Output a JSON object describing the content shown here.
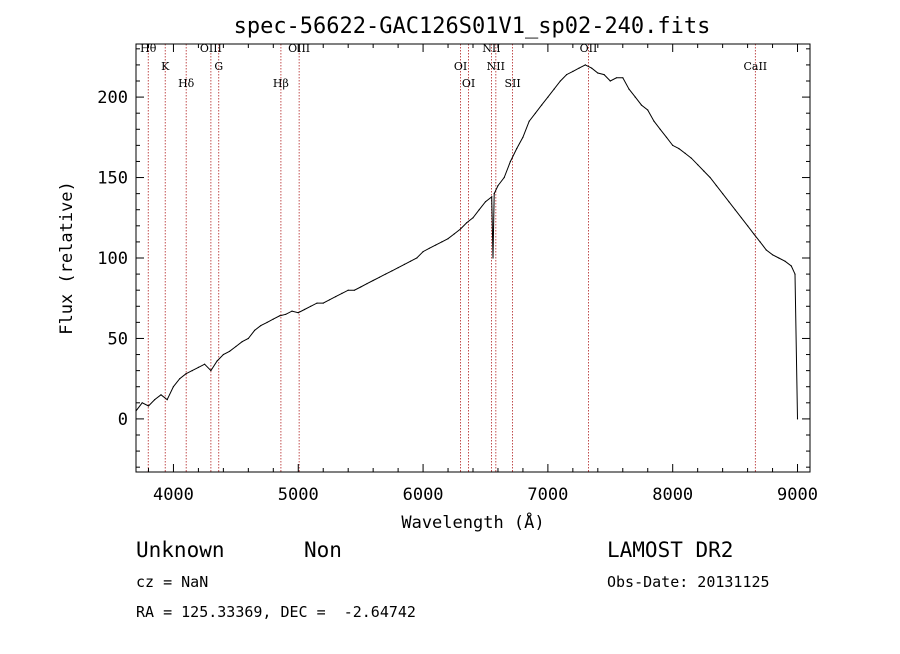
{
  "chart_data": {
    "type": "line",
    "title": "spec-56622-GAC126S01V1_sp02-240.fits",
    "xlabel": "Wavelength (Å)",
    "ylabel": "Flux (relative)",
    "xlim": [
      3700,
      9100
    ],
    "ylim": [
      -33,
      233
    ],
    "x_ticks": [
      4000,
      5000,
      6000,
      7000,
      8000,
      9000
    ],
    "y_ticks": [
      0,
      50,
      100,
      150,
      200
    ],
    "grid": false,
    "series": [
      {
        "color": "#000000",
        "x": [
          3700,
          3750,
          3800,
          3850,
          3900,
          3950,
          4000,
          4050,
          4100,
          4150,
          4200,
          4250,
          4300,
          4350,
          4400,
          4450,
          4500,
          4550,
          4600,
          4650,
          4700,
          4750,
          4800,
          4850,
          4900,
          4950,
          5000,
          5050,
          5100,
          5150,
          5200,
          5250,
          5300,
          5350,
          5400,
          5450,
          5500,
          5550,
          5600,
          5650,
          5700,
          5750,
          5800,
          5850,
          5900,
          5950,
          6000,
          6050,
          6100,
          6150,
          6200,
          6250,
          6300,
          6350,
          6400,
          6450,
          6500,
          6550,
          6560,
          6570,
          6600,
          6650,
          6700,
          6750,
          6800,
          6850,
          6900,
          6950,
          7000,
          7050,
          7100,
          7150,
          7200,
          7250,
          7300,
          7350,
          7400,
          7450,
          7500,
          7550,
          7600,
          7650,
          7700,
          7750,
          7800,
          7850,
          7900,
          7950,
          8000,
          8050,
          8100,
          8150,
          8200,
          8250,
          8300,
          8350,
          8400,
          8450,
          8500,
          8550,
          8600,
          8650,
          8700,
          8750,
          8800,
          8850,
          8900,
          8950,
          8980,
          9000
        ],
        "y": [
          5,
          10,
          8,
          12,
          15,
          12,
          20,
          25,
          28,
          30,
          32,
          34,
          30,
          36,
          40,
          42,
          45,
          48,
          50,
          55,
          58,
          60,
          62,
          64,
          65,
          67,
          66,
          68,
          70,
          72,
          72,
          74,
          76,
          78,
          80,
          80,
          82,
          84,
          86,
          88,
          90,
          92,
          94,
          96,
          98,
          100,
          104,
          106,
          108,
          110,
          112,
          115,
          118,
          122,
          125,
          130,
          135,
          138,
          100,
          140,
          145,
          150,
          160,
          168,
          175,
          185,
          190,
          195,
          200,
          205,
          210,
          214,
          216,
          218,
          220,
          218,
          215,
          214,
          210,
          212,
          212,
          205,
          200,
          195,
          192,
          185,
          180,
          175,
          170,
          168,
          165,
          162,
          158,
          154,
          150,
          145,
          140,
          135,
          130,
          125,
          120,
          115,
          110,
          105,
          102,
          100,
          98,
          95,
          90,
          0
        ]
      }
    ],
    "emission_lines": [
      {
        "name": "Hθ",
        "wavelength": 3798
      },
      {
        "name": "K",
        "wavelength": 3934
      },
      {
        "name": "Hδ",
        "wavelength": 4102
      },
      {
        "name": "OIII",
        "wavelength": 4300
      },
      {
        "name": "G",
        "wavelength": 4363
      },
      {
        "name": "Hβ",
        "wavelength": 4861
      },
      {
        "name": "OIII",
        "wavelength": 5007
      },
      {
        "name": "OI",
        "wavelength": 6300
      },
      {
        "name": "OI",
        "wavelength": 6364
      },
      {
        "name": "NII",
        "wavelength": 6548
      },
      {
        "name": "NII",
        "wavelength": 6583
      },
      {
        "name": "SII",
        "wavelength": 6717
      },
      {
        "name": "OII",
        "wavelength": 7325
      },
      {
        "name": "CaII",
        "wavelength": 8662
      }
    ]
  },
  "info": {
    "class": "Unknown",
    "subclass": "Non",
    "survey": "LAMOST DR2",
    "cz": "cz = NaN",
    "obs_date": "Obs-Date: 20131125",
    "coords": "RA = 125.33369, DEC =  -2.64742"
  }
}
